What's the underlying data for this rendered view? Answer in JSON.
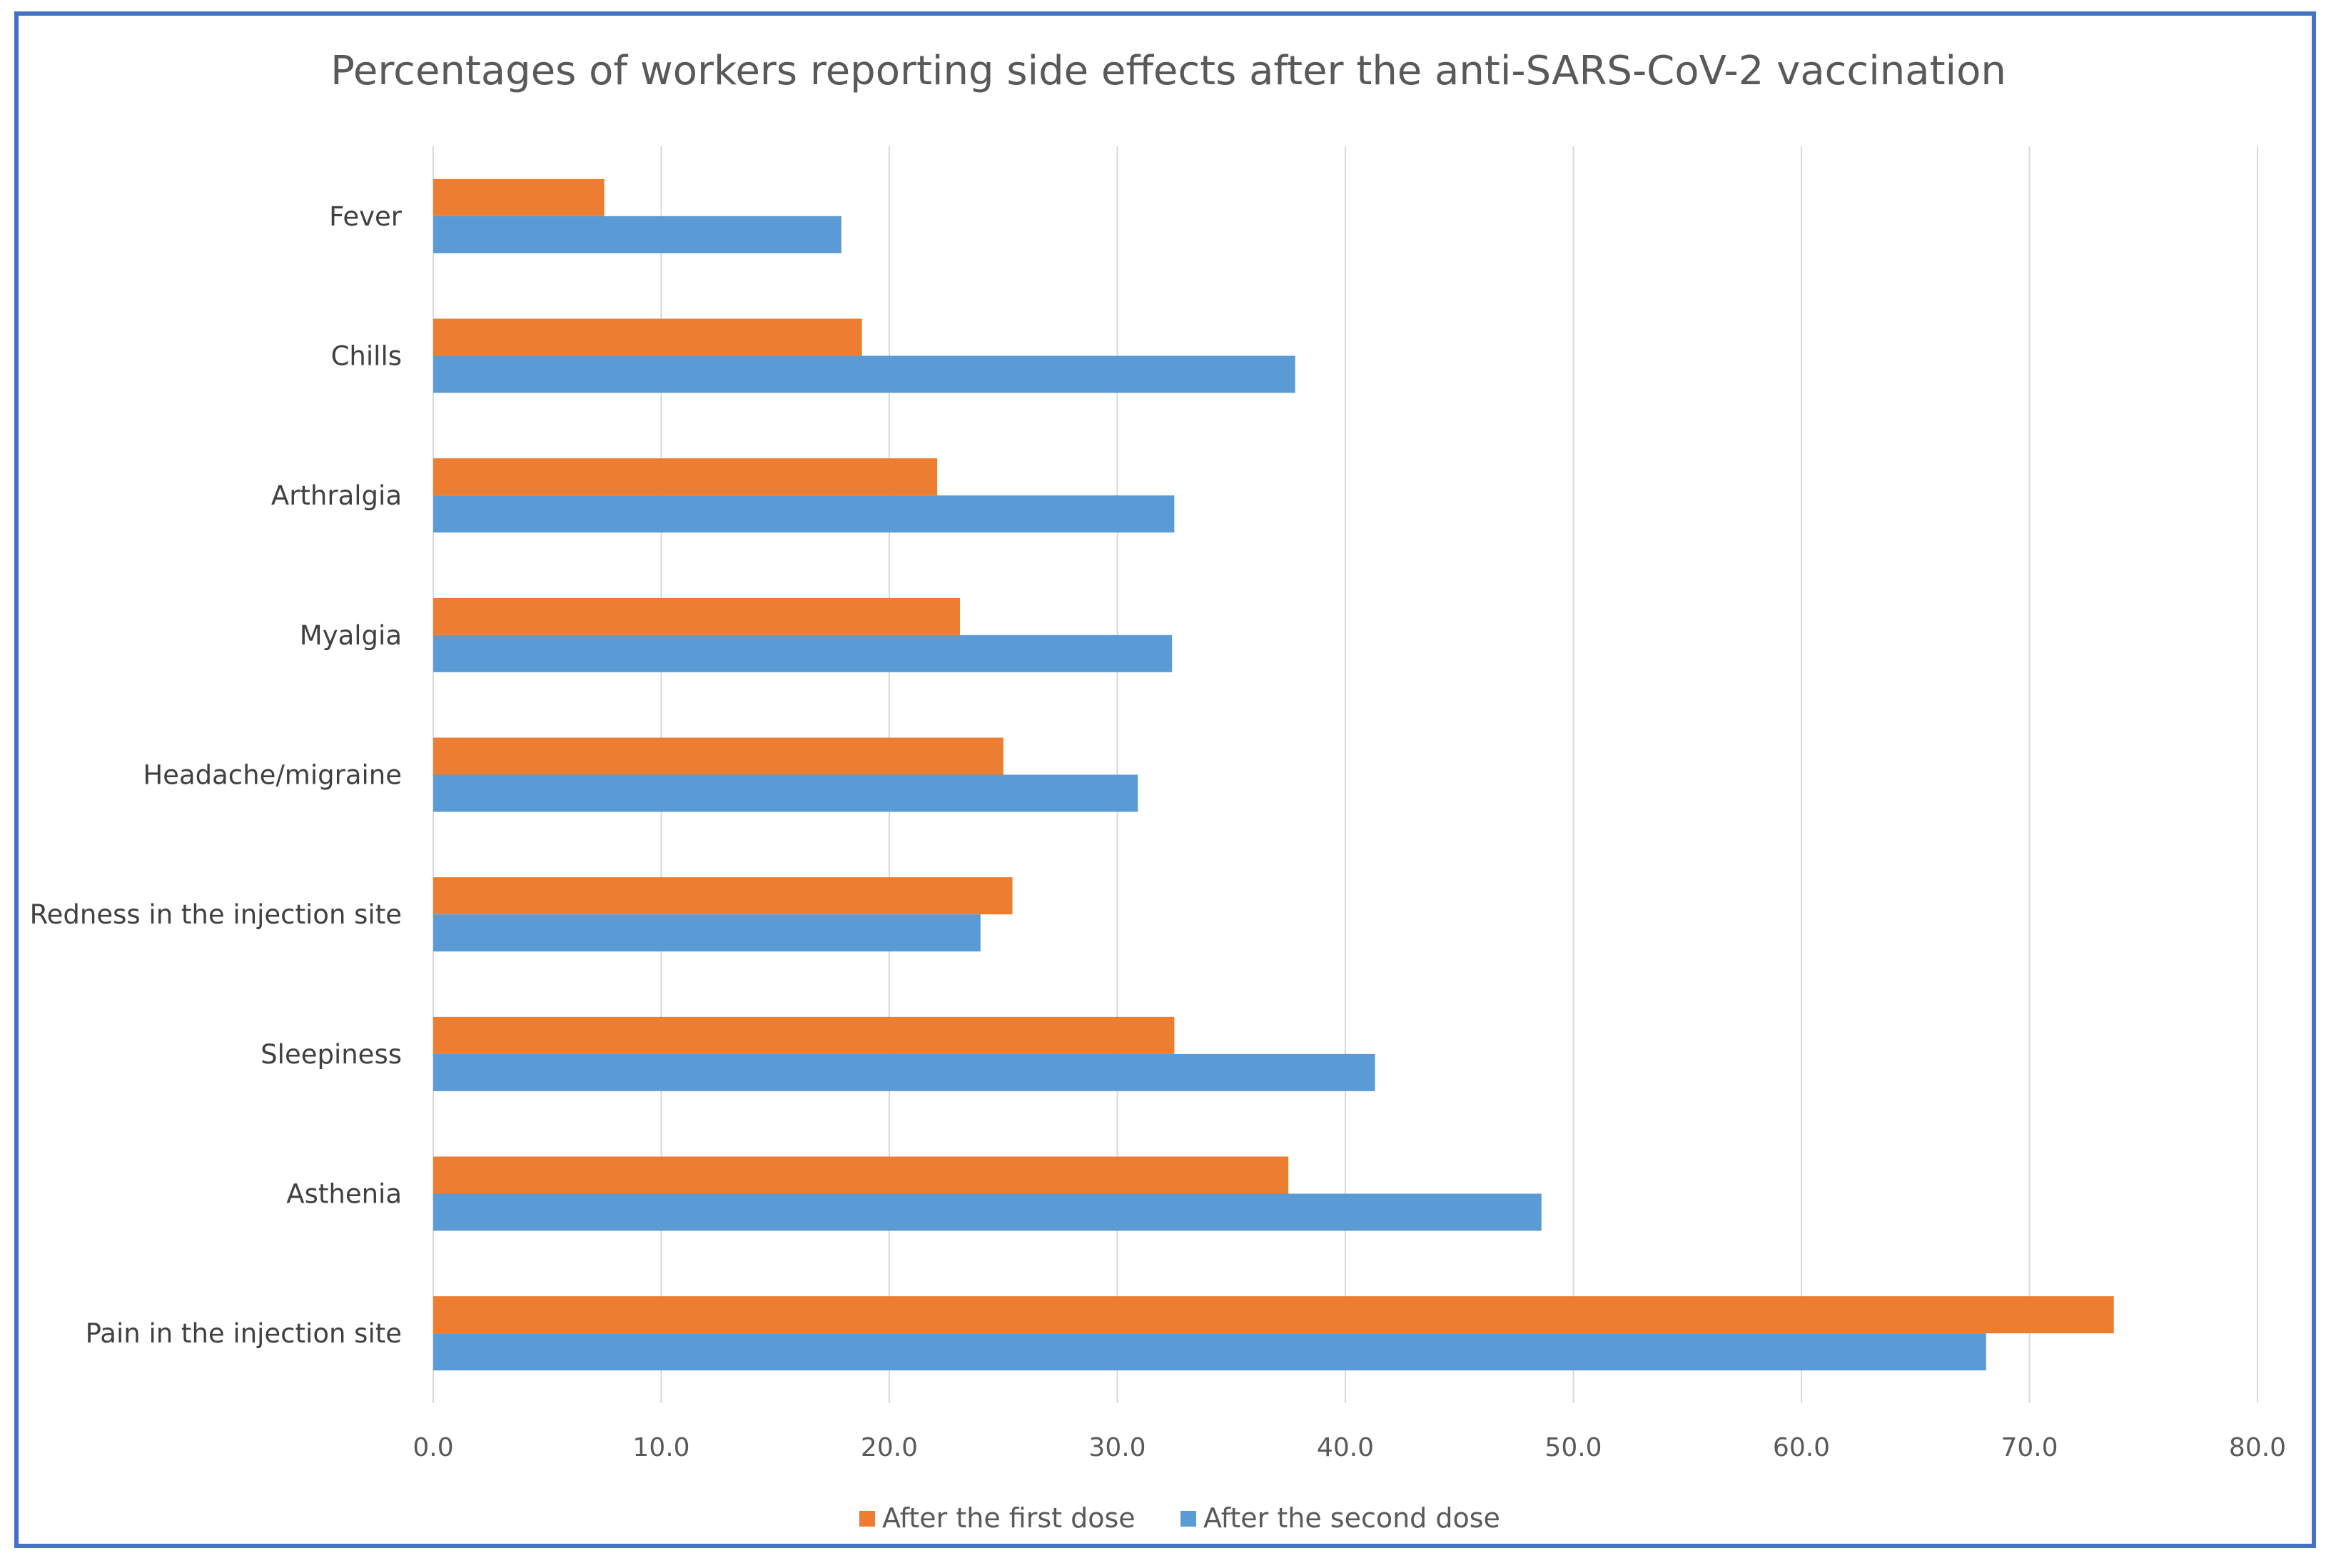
{
  "chart_data": {
    "type": "bar",
    "orientation": "horizontal",
    "title": "Percentages of workers reporting side effects after the anti-SARS-CoV-2 vaccination",
    "categories": [
      "Fever",
      "Chills",
      "Arthralgia",
      "Myalgia",
      "Headache/migraine",
      "Redness in the injection site",
      "Sleepiness",
      "Asthenia",
      "Pain in the injection site"
    ],
    "series": [
      {
        "name": "After the first dose",
        "color": "#ed7d31",
        "values": [
          7.5,
          18.8,
          22.1,
          23.1,
          25.0,
          25.4,
          32.5,
          37.5,
          73.7
        ]
      },
      {
        "name": "After the second dose",
        "color": "#5b9bd5",
        "values": [
          17.9,
          37.8,
          32.5,
          32.4,
          30.9,
          24.0,
          41.3,
          48.6,
          68.1
        ]
      }
    ],
    "x_ticks": [
      "0.0",
      "10.0",
      "20.0",
      "30.0",
      "40.0",
      "50.0",
      "60.0",
      "70.0",
      "80.0"
    ],
    "xlim": [
      0,
      80
    ],
    "xlabel": "",
    "ylabel": "",
    "grid": true,
    "legend_position": "bottom"
  },
  "colors": {
    "border": "#4472c4",
    "gridline": "#d9d9d9",
    "axis_text": "#595959"
  }
}
